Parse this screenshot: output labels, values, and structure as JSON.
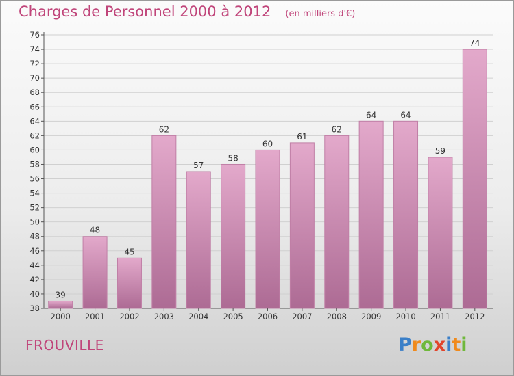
{
  "header": {
    "title": "Charges de Personnel 2000 à 2012",
    "subtitle": "(en milliers d'€)"
  },
  "footer": {
    "commune": "FROUVILLE",
    "brand": "Proxiti",
    "brand_letters": [
      {
        "ch": "P",
        "color": "#3a7fc8"
      },
      {
        "ch": "r",
        "color": "#f08a1c"
      },
      {
        "ch": "o",
        "color": "#6fb83b"
      },
      {
        "ch": "x",
        "color": "#e2452b"
      },
      {
        "ch": "i",
        "color": "#3a7fc8"
      },
      {
        "ch": "t",
        "color": "#f08a1c"
      },
      {
        "ch": "i",
        "color": "#6fb83b"
      }
    ]
  },
  "colors": {
    "title": "#c0457a",
    "bar_top": "#e3a9cb",
    "bar_bottom": "#ad6b94",
    "bar_stroke": "#c07fa6",
    "axis": "#555555",
    "grid": "#d0d0d0",
    "text": "#333333"
  },
  "chart_data": {
    "type": "bar",
    "categories": [
      "2000",
      "2001",
      "2002",
      "2003",
      "2004",
      "2005",
      "2006",
      "2007",
      "2008",
      "2009",
      "2010",
      "2011",
      "2012"
    ],
    "values": [
      39,
      48,
      45,
      62,
      57,
      58,
      60,
      61,
      62,
      64,
      64,
      59,
      74
    ],
    "ylim": [
      38,
      76
    ],
    "yticks": [
      38,
      40,
      42,
      44,
      46,
      48,
      50,
      52,
      54,
      56,
      58,
      60,
      62,
      64,
      66,
      68,
      70,
      72,
      74,
      76
    ],
    "grid": true,
    "legend": "none"
  }
}
